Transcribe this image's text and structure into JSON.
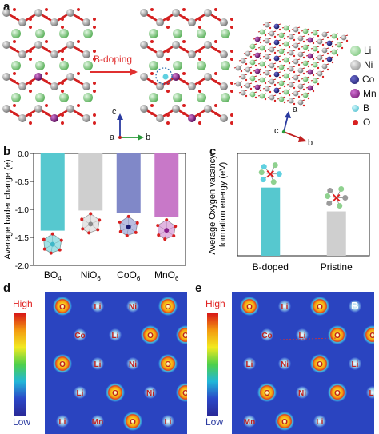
{
  "panels": {
    "a": "a",
    "b": "b",
    "c": "c",
    "d": "d",
    "e": "e"
  },
  "panel_a": {
    "arrow_label": "B-doping",
    "axes_left": {
      "c": "c",
      "a": "a",
      "b": "b"
    },
    "axes_right": {
      "a": "a",
      "c": "c",
      "b": "b"
    },
    "legend": [
      {
        "label": "Li",
        "color": "#8fd18f"
      },
      {
        "label": "Ni",
        "color": "#9a9a9a"
      },
      {
        "label": "Co",
        "color": "#23237a"
      },
      {
        "label": "Mn",
        "color": "#8a1f8a"
      },
      {
        "label": "B",
        "color": "#5fd0e0"
      },
      {
        "label": "O",
        "color": "#d82020"
      }
    ]
  },
  "chart_data": [
    {
      "type": "bar",
      "panel": "b",
      "ylabel": "Average bader charge (e)",
      "categories": [
        "BO4",
        "NiO6",
        "CoO6",
        "MnO6"
      ],
      "category_display": [
        {
          "main": "BO",
          "sub": "4"
        },
        {
          "main": "NiO",
          "sub": "6"
        },
        {
          "main": "CoO",
          "sub": "6"
        },
        {
          "main": "MnO",
          "sub": "6"
        }
      ],
      "values": [
        -1.38,
        -1.02,
        -1.07,
        -1.13
      ],
      "colors": [
        "#56c8cf",
        "#cfcfcf",
        "#8088c8",
        "#c878c8"
      ],
      "ylim": [
        -2.0,
        0.0
      ],
      "yticks": [
        0.0,
        -0.5,
        -1.0,
        -1.5,
        -2.0
      ],
      "ytick_labels": [
        "0.0",
        "-0.5",
        "-1.0",
        "-1.5",
        "-2.0"
      ]
    },
    {
      "type": "bar",
      "panel": "c",
      "ylabel": "Average Oxygen vacancy formation energy (eV)",
      "ylabel_lines": [
        "Average Oxygen vacancy",
        "formation energy (eV)"
      ],
      "categories": [
        "B-doped",
        "Pristine"
      ],
      "values": [
        2.0,
        1.3
      ],
      "colors": [
        "#56c8cf",
        "#cfcfcf"
      ],
      "ylim": [
        0,
        3
      ]
    }
  ],
  "panel_d": {
    "colorbar": {
      "high": "High",
      "low": "Low"
    },
    "atom_labels": [
      "O",
      "Li",
      "Ni",
      "O",
      "Co",
      "Li",
      "O",
      "O",
      "O",
      "Li",
      "Ni",
      "O",
      "Li",
      "O",
      "Ni",
      "O",
      "Li",
      "Mn",
      "O",
      "Li"
    ]
  },
  "panel_e": {
    "colorbar": {
      "high": "High",
      "low": "Low"
    },
    "atom_labels": [
      "O",
      "Li",
      "O",
      "B",
      "Co",
      "Li",
      "O",
      "O",
      "Li",
      "Ni",
      "O",
      "Li",
      "O",
      "Ni",
      "O",
      "Li",
      "Mn",
      "O",
      "Li"
    ]
  }
}
